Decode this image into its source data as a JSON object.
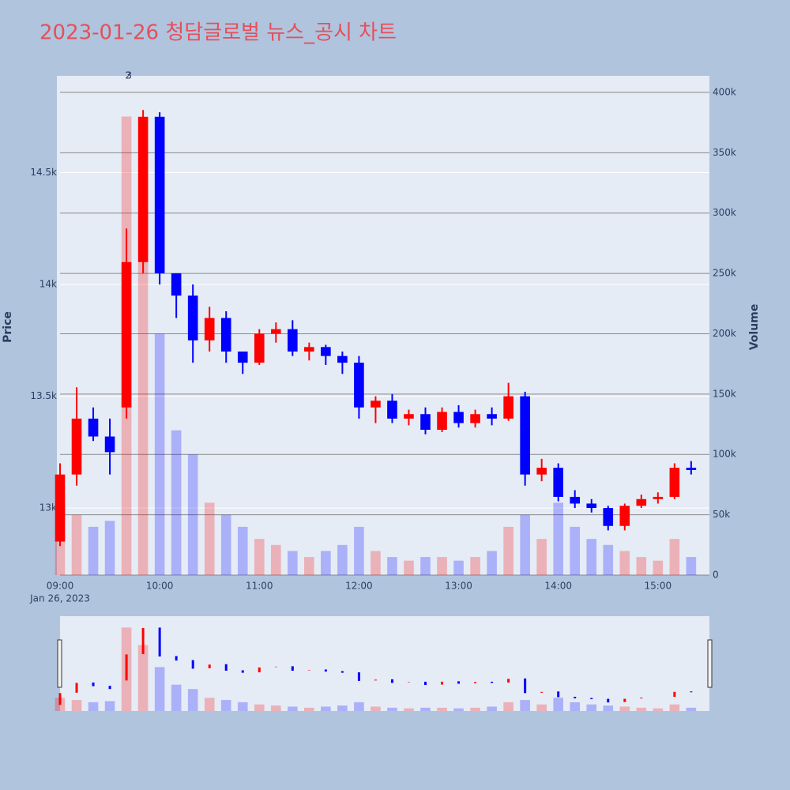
{
  "chart_data": {
    "type": "candlestick",
    "title": "2023-01-26 청담글로벌 뉴스_공시 차트",
    "y_label": "Price",
    "y2_label": "Volume",
    "x": [
      "09:00",
      "09:10",
      "09:20",
      "09:30",
      "09:40",
      "09:50",
      "10:00",
      "10:10",
      "10:20",
      "10:30",
      "10:40",
      "10:50",
      "11:00",
      "11:10",
      "11:20",
      "11:30",
      "11:40",
      "11:50",
      "12:00",
      "12:10",
      "12:20",
      "12:30",
      "12:40",
      "12:50",
      "13:00",
      "13:10",
      "13:20",
      "13:30",
      "13:40",
      "13:50",
      "14:00",
      "14:10",
      "14:20",
      "14:30",
      "14:40",
      "14:50",
      "15:00",
      "15:10",
      "15:20"
    ],
    "open": [
      12850,
      13150,
      13400,
      13320,
      13450,
      14100,
      14750,
      14050,
      13950,
      13750,
      13850,
      13700,
      13650,
      13780,
      13800,
      13700,
      13720,
      13680,
      13650,
      13450,
      13480,
      13400,
      13420,
      13350,
      13430,
      13380,
      13420,
      13400,
      13500,
      13150,
      13180,
      13050,
      13020,
      13000,
      12920,
      13010,
      13040,
      13050,
      13180
    ],
    "high": [
      13200,
      13540,
      13450,
      13400,
      14250,
      14780,
      14770,
      14050,
      14000,
      13900,
      13880,
      13700,
      13800,
      13830,
      13840,
      13740,
      13730,
      13700,
      13680,
      13500,
      13510,
      13440,
      13450,
      13450,
      13460,
      13440,
      13450,
      13560,
      13520,
      13220,
      13200,
      13080,
      13040,
      13010,
      13020,
      13060,
      13070,
      13200,
      13210
    ],
    "low": [
      12830,
      13100,
      13300,
      13150,
      13400,
      14050,
      14000,
      13850,
      13650,
      13700,
      13650,
      13600,
      13640,
      13740,
      13680,
      13660,
      13640,
      13600,
      13400,
      13380,
      13380,
      13370,
      13330,
      13340,
      13360,
      13360,
      13370,
      13390,
      13100,
      13120,
      13030,
      13000,
      12980,
      12900,
      12900,
      13000,
      13020,
      13040,
      13150
    ],
    "close": [
      13150,
      13400,
      13320,
      13250,
      14100,
      14750,
      14050,
      13950,
      13750,
      13850,
      13700,
      13650,
      13780,
      13800,
      13700,
      13720,
      13680,
      13650,
      13450,
      13480,
      13400,
      13420,
      13350,
      13430,
      13380,
      13420,
      13400,
      13500,
      13150,
      13180,
      13050,
      13020,
      13000,
      12920,
      13010,
      13040,
      13050,
      13180,
      13170
    ],
    "volume": [
      60000,
      50000,
      40000,
      45000,
      380000,
      300000,
      200000,
      120000,
      100000,
      60000,
      50000,
      40000,
      30000,
      25000,
      20000,
      15000,
      20000,
      25000,
      40000,
      20000,
      15000,
      12000,
      15000,
      15000,
      12000,
      15000,
      20000,
      40000,
      50000,
      30000,
      60000,
      40000,
      30000,
      25000,
      20000,
      15000,
      12000,
      30000,
      15000
    ],
    "increasing_color": "#ff0000",
    "decreasing_color": "#0000ff",
    "xlim": [
      "09:00",
      "15:31"
    ],
    "xticks": [
      "09:00",
      "10:00",
      "11:00",
      "12:00",
      "13:00",
      "14:00",
      "15:00"
    ],
    "x_date_label": "Jan 26, 2023",
    "ylim": [
      12700,
      14933
    ],
    "yticks": [
      {
        "value": 13000,
        "label": "13k"
      },
      {
        "value": 13500,
        "label": "13.5k"
      },
      {
        "value": 14000,
        "label": "14k"
      },
      {
        "value": 14500,
        "label": "14.5k"
      }
    ],
    "y2lim": [
      0,
      413700
    ],
    "y2ticks": [
      0,
      {
        "value": 50000,
        "label": "50k"
      },
      {
        "value": 100000,
        "label": "100k"
      },
      {
        "value": 150000,
        "label": "150k"
      },
      {
        "value": 200000,
        "label": "200k"
      },
      {
        "value": 250000,
        "label": "250k"
      },
      {
        "value": 300000,
        "label": "300k"
      },
      {
        "value": 350000,
        "label": "350k"
      },
      {
        "value": 400000,
        "label": "400k"
      }
    ],
    "annotations": [
      {
        "x": "09:41",
        "text": "2"
      },
      {
        "x": "09:41",
        "text": "3"
      }
    ],
    "range_slider": true
  }
}
